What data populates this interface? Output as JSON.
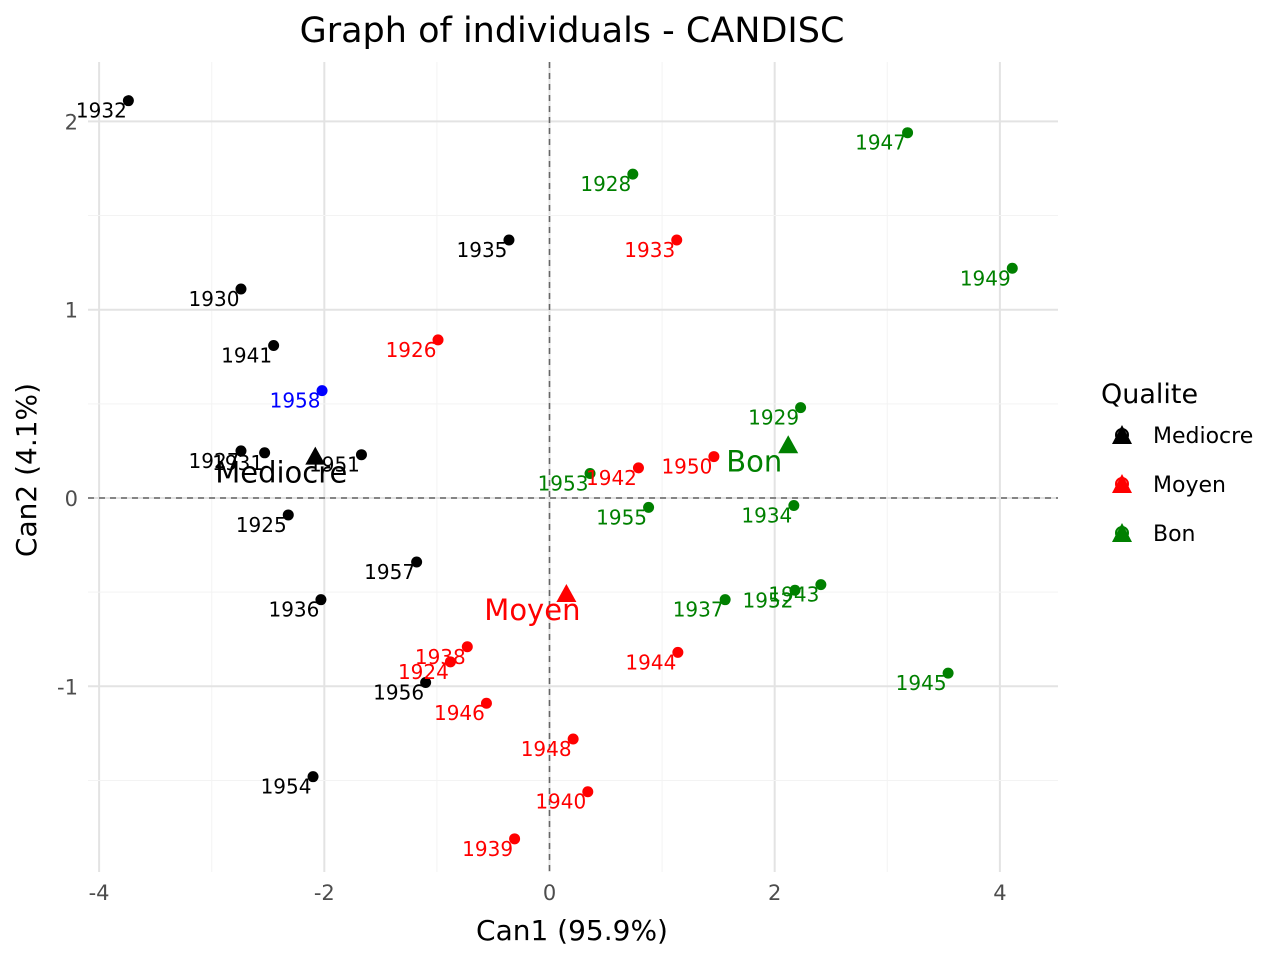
{
  "colors": {
    "Mediocre": "#000000",
    "Moyen": "#ff0000",
    "Bon": "#008000",
    "Supplementary": "#0000ff"
  },
  "chart_data": {
    "type": "scatter",
    "title": "Graph of individuals - CANDISC",
    "xlabel": "Can1 (95.9%)",
    "ylabel": "Can2 (4.1%)",
    "xlim": [
      -4.0,
      4.5
    ],
    "ylim": [
      -1.98,
      2.3
    ],
    "xticks": [
      -4,
      -2,
      0,
      2,
      4
    ],
    "yticks": [
      -1,
      0,
      1,
      2
    ],
    "xtick_labels": [
      "-4",
      "-2",
      "0",
      "2",
      "4"
    ],
    "ytick_labels": [
      "-1",
      "0",
      "1",
      "2"
    ],
    "grid": true,
    "reference_lines": {
      "x": 0,
      "y": 0,
      "style": "dashed"
    },
    "legend": {
      "title": "Qualite",
      "position": "right",
      "entries": [
        "Mediocre",
        "Moyen",
        "Bon"
      ]
    },
    "points": [
      {
        "label": "1932",
        "group": "Mediocre",
        "x": -3.74,
        "y": 2.11
      },
      {
        "label": "1935",
        "group": "Mediocre",
        "x": -0.36,
        "y": 1.37
      },
      {
        "label": "1930",
        "group": "Mediocre",
        "x": -2.74,
        "y": 1.11
      },
      {
        "label": "1941",
        "group": "Mediocre",
        "x": -2.45,
        "y": 0.81
      },
      {
        "label": "1927",
        "group": "Mediocre",
        "x": -2.74,
        "y": 0.25
      },
      {
        "label": "1931",
        "group": "Mediocre",
        "x": -2.53,
        "y": 0.24
      },
      {
        "label": "1951",
        "group": "Mediocre",
        "x": -1.67,
        "y": 0.23
      },
      {
        "label": "1925",
        "group": "Mediocre",
        "x": -2.32,
        "y": -0.09
      },
      {
        "label": "1957",
        "group": "Mediocre",
        "x": -1.18,
        "y": -0.34
      },
      {
        "label": "1936",
        "group": "Mediocre",
        "x": -2.03,
        "y": -0.54
      },
      {
        "label": "1956",
        "group": "Mediocre",
        "x": -1.1,
        "y": -0.98
      },
      {
        "label": "1954",
        "group": "Mediocre",
        "x": -2.1,
        "y": -1.48
      },
      {
        "label": "1933",
        "group": "Moyen",
        "x": 1.13,
        "y": 1.37
      },
      {
        "label": "1926",
        "group": "Moyen",
        "x": -0.99,
        "y": 0.84
      },
      {
        "label": "1942",
        "group": "Moyen",
        "x": 0.79,
        "y": 0.16
      },
      {
        "label": "1950",
        "group": "Moyen",
        "x": 1.46,
        "y": 0.22
      },
      {
        "label": "1938",
        "group": "Moyen",
        "x": -0.73,
        "y": -0.79
      },
      {
        "label": "1924",
        "group": "Moyen",
        "x": -0.88,
        "y": -0.87
      },
      {
        "label": "1944",
        "group": "Moyen",
        "x": 1.14,
        "y": -0.82
      },
      {
        "label": "1946",
        "group": "Moyen",
        "x": -0.56,
        "y": -1.09
      },
      {
        "label": "1948",
        "group": "Moyen",
        "x": 0.21,
        "y": -1.28
      },
      {
        "label": "1940",
        "group": "Moyen",
        "x": 0.34,
        "y": -1.56
      },
      {
        "label": "1939",
        "group": "Moyen",
        "x": -0.31,
        "y": -1.81
      },
      {
        "label": "1947",
        "group": "Bon",
        "x": 3.18,
        "y": 1.94
      },
      {
        "label": "1928",
        "group": "Bon",
        "x": 0.74,
        "y": 1.72
      },
      {
        "label": "1949",
        "group": "Bon",
        "x": 4.11,
        "y": 1.22
      },
      {
        "label": "1929",
        "group": "Bon",
        "x": 2.23,
        "y": 0.48
      },
      {
        "label": "1953",
        "group": "Bon",
        "x": 0.36,
        "y": 0.13
      },
      {
        "label": "1955",
        "group": "Bon",
        "x": 0.88,
        "y": -0.05
      },
      {
        "label": "1934",
        "group": "Bon",
        "x": 2.17,
        "y": -0.04
      },
      {
        "label": "1943",
        "group": "Bon",
        "x": 2.41,
        "y": -0.46
      },
      {
        "label": "1952",
        "group": "Bon",
        "x": 2.18,
        "y": -0.49
      },
      {
        "label": "1937",
        "group": "Bon",
        "x": 1.56,
        "y": -0.54
      },
      {
        "label": "1945",
        "group": "Bon",
        "x": 3.54,
        "y": -0.93
      },
      {
        "label": "1958",
        "group": "Supplementary",
        "x": -2.02,
        "y": 0.57
      }
    ],
    "centroids": [
      {
        "label": "Mediocre",
        "group": "Mediocre",
        "x": -2.08,
        "y": 0.22
      },
      {
        "label": "Moyen",
        "group": "Moyen",
        "x": 0.15,
        "y": -0.51
      },
      {
        "label": "Bon",
        "group": "Bon",
        "x": 2.12,
        "y": 0.28
      }
    ]
  }
}
